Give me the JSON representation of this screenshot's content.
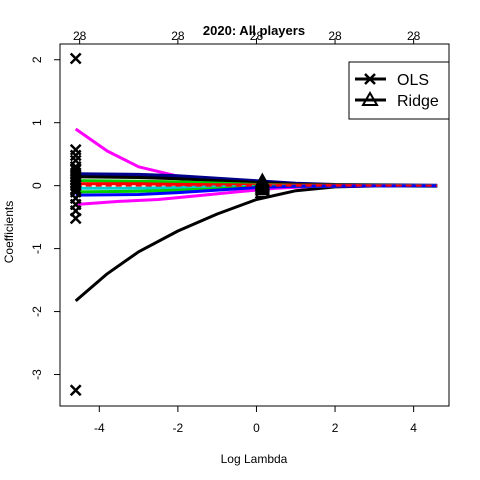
{
  "chart_data": {
    "type": "line",
    "title": "2020: All players",
    "xlabel": "Log Lambda",
    "ylabel": "Coefficients",
    "xlim": [
      -5.0,
      4.9
    ],
    "ylim": [
      -3.5,
      2.25
    ],
    "x_ticks": [
      -4,
      -2,
      0,
      2,
      4
    ],
    "y_ticks": [
      -3,
      -2,
      -1,
      0,
      1,
      2
    ],
    "top_ticks": [
      {
        "x": -4.5,
        "label": "28"
      },
      {
        "x": -2.0,
        "label": "28"
      },
      {
        "x": 0.0,
        "label": "28"
      },
      {
        "x": 2.0,
        "label": "28"
      },
      {
        "x": 4.0,
        "label": "28"
      }
    ],
    "grid": false,
    "legend_position": "top-right",
    "legend": [
      {
        "label": "OLS",
        "marker": "x"
      },
      {
        "label": "Ridge",
        "marker": "triangle"
      }
    ],
    "colors": {
      "black": "#000000",
      "magenta": "#ff00ff",
      "blue": "#0000ff",
      "green": "#00cd00",
      "red": "#ff0000",
      "cyan": "#00cdcd",
      "darkblue": "#00008b"
    },
    "lambda_paths": [
      {
        "color": "#000000",
        "width": 3,
        "points": [
          [
            -4.6,
            -1.83
          ],
          [
            -3.8,
            -1.4
          ],
          [
            -3,
            -1.05
          ],
          [
            -2,
            -0.72
          ],
          [
            -1,
            -0.45
          ],
          [
            0,
            -0.22
          ],
          [
            1,
            -0.08
          ],
          [
            2,
            -0.02
          ],
          [
            3,
            -0.005
          ],
          [
            4.6,
            0
          ]
        ]
      },
      {
        "color": "#ff00ff",
        "width": 3,
        "points": [
          [
            -4.6,
            0.9
          ],
          [
            -3.8,
            0.55
          ],
          [
            -3,
            0.3
          ],
          [
            -2,
            0.15
          ],
          [
            -1,
            0.07
          ],
          [
            0,
            0.03
          ],
          [
            1,
            0.01
          ],
          [
            2,
            0.003
          ],
          [
            4.6,
            0
          ]
        ]
      },
      {
        "color": "#ff00ff",
        "width": 3,
        "points": [
          [
            -4.6,
            -0.3
          ],
          [
            -3.5,
            -0.25
          ],
          [
            -2.5,
            -0.22
          ],
          [
            -1.5,
            -0.16
          ],
          [
            -0.5,
            -0.1
          ],
          [
            0.5,
            -0.04
          ],
          [
            1.5,
            -0.01
          ],
          [
            4.6,
            0
          ]
        ]
      },
      {
        "color": "#00008b",
        "width": 4,
        "points": [
          [
            -4.6,
            0.18
          ],
          [
            -3,
            0.17
          ],
          [
            -2,
            0.15
          ],
          [
            -1,
            0.11
          ],
          [
            0,
            0.07
          ],
          [
            1,
            0.03
          ],
          [
            2,
            0.01
          ],
          [
            4.6,
            0
          ]
        ]
      },
      {
        "color": "#000000",
        "width": 3,
        "points": [
          [
            -4.6,
            0.14
          ],
          [
            -3,
            0.13
          ],
          [
            -2,
            0.11
          ],
          [
            -1,
            0.08
          ],
          [
            0,
            0.05
          ],
          [
            1,
            0.02
          ],
          [
            4.6,
            0
          ]
        ]
      },
      {
        "color": "#00cd00",
        "width": 3,
        "points": [
          [
            -4.6,
            0.08
          ],
          [
            -3,
            0.07
          ],
          [
            -2,
            0.06
          ],
          [
            -1,
            0.04
          ],
          [
            0,
            0.02
          ],
          [
            1,
            0.01
          ],
          [
            4.6,
            0
          ]
        ]
      },
      {
        "color": "#ff0000",
        "width": 3,
        "points": [
          [
            -4.6,
            0.03
          ],
          [
            -3,
            0.03
          ],
          [
            -2,
            0.02
          ],
          [
            -1,
            0.015
          ],
          [
            0,
            0.01
          ],
          [
            4.6,
            0
          ]
        ]
      },
      {
        "color": "#00cdcd",
        "width": 3,
        "points": [
          [
            -4.6,
            -0.04
          ],
          [
            -3,
            -0.04
          ],
          [
            -2,
            -0.03
          ],
          [
            -1,
            -0.02
          ],
          [
            0,
            -0.01
          ],
          [
            4.6,
            0
          ]
        ]
      },
      {
        "color": "#00cd00",
        "width": 3,
        "points": [
          [
            -4.6,
            -0.1
          ],
          [
            -3,
            -0.09
          ],
          [
            -2,
            -0.07
          ],
          [
            -1,
            -0.05
          ],
          [
            0,
            -0.02
          ],
          [
            1,
            -0.01
          ],
          [
            4.6,
            0
          ]
        ]
      },
      {
        "color": "#0000ff",
        "width": 3,
        "points": [
          [
            -4.6,
            -0.15
          ],
          [
            -3,
            -0.14
          ],
          [
            -2,
            -0.11
          ],
          [
            -1,
            -0.07
          ],
          [
            0,
            -0.03
          ],
          [
            1,
            -0.01
          ],
          [
            4.6,
            0
          ]
        ]
      }
    ],
    "ols_points": {
      "x": -4.6,
      "values": [
        2.02,
        -3.25,
        0.57,
        0.48,
        0.4,
        0.3,
        0.25,
        0.2,
        0.15,
        0.1,
        0.05,
        0.0,
        -0.05,
        -0.1,
        -0.2,
        -0.3,
        -0.4,
        -0.52
      ]
    },
    "ridge_points": {
      "x": 0.15,
      "values": [
        0.08,
        0.05,
        0.02,
        0.0,
        -0.03,
        -0.06,
        -0.1
      ]
    },
    "dashed_zero_line": {
      "color": "#ff0000",
      "x_from": -4.6,
      "x_to": 4.6,
      "y": 0
    }
  }
}
